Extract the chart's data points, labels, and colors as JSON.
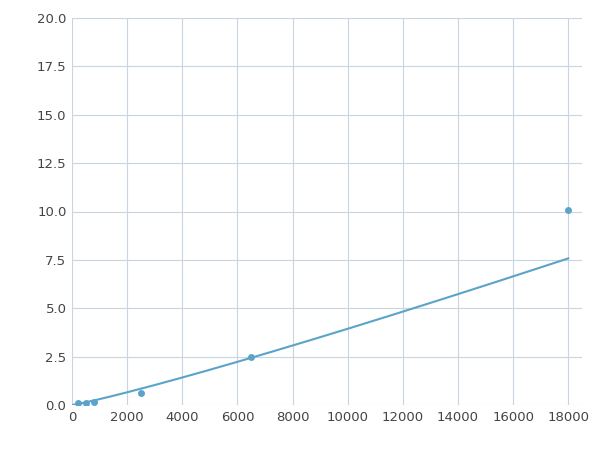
{
  "x": [
    0,
    200,
    500,
    800,
    2500,
    6500,
    18000
  ],
  "y": [
    0.0,
    0.08,
    0.12,
    0.18,
    0.6,
    2.5,
    10.1
  ],
  "line_color": "#5ba3c9",
  "marker_x": [
    200,
    500,
    800,
    2500,
    6500,
    18000
  ],
  "marker_y": [
    0.08,
    0.12,
    0.18,
    0.6,
    2.5,
    10.1
  ],
  "marker_color": "#5ba3c9",
  "marker_size": 5,
  "xlim": [
    0,
    18500
  ],
  "ylim": [
    0,
    20
  ],
  "xticks": [
    0,
    2000,
    4000,
    6000,
    8000,
    10000,
    12000,
    14000,
    16000,
    18000
  ],
  "yticks": [
    0.0,
    2.5,
    5.0,
    7.5,
    10.0,
    12.5,
    15.0,
    17.5,
    20.0
  ],
  "grid_color": "#c8d4e0",
  "background_color": "#ffffff",
  "linewidth": 1.5,
  "tick_fontsize": 9.5
}
